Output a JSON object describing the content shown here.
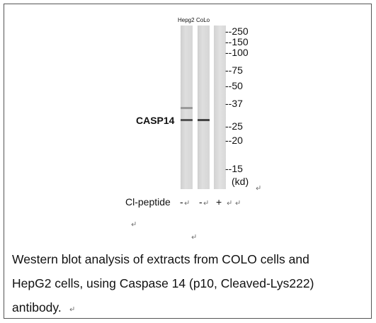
{
  "blot": {
    "lanes": [
      "Hepg2",
      "CoLo"
    ],
    "markers": [
      "--250",
      "--150",
      "--100",
      "--75",
      "--50",
      "--37",
      "--25",
      "--20",
      "--15"
    ],
    "unit": "(kd)",
    "target": "CASP14",
    "peptide": {
      "label": "Cl-peptide",
      "signs": [
        "-",
        "-",
        "+"
      ]
    }
  },
  "caption": [
    "Western blot analysis of extracts from COLO cells and",
    "HepG2 cells, using Caspase 14 (p10, Cleaved-Lys222)",
    "antibody."
  ]
}
